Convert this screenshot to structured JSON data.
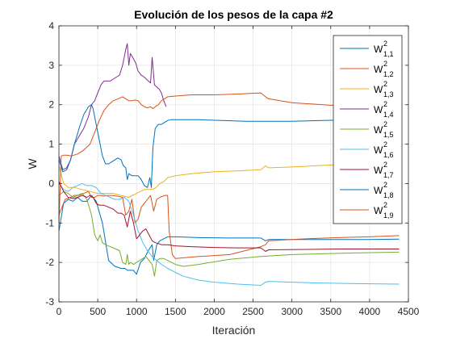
{
  "chart_data": {
    "type": "line",
    "title": "Evolución de los pesos de la capa #2",
    "xlabel": "Iteración",
    "ylabel": "W",
    "xlim": [
      0,
      4500
    ],
    "ylim": [
      -3,
      4
    ],
    "xticks": [
      0,
      500,
      1000,
      1500,
      2000,
      2500,
      3000,
      3500,
      4000,
      4500
    ],
    "yticks": [
      -3,
      -2,
      -1,
      0,
      1,
      2,
      3,
      4
    ],
    "grid": true,
    "legend_position": "top-right",
    "series": [
      {
        "name": "W",
        "sup": "2",
        "sub": "1,1",
        "color": "#0072BD",
        "x": [
          0,
          60,
          120,
          180,
          240,
          300,
          360,
          420,
          480,
          560,
          640,
          720,
          800,
          850,
          880,
          920,
          960,
          1000,
          1050,
          1100,
          1150,
          1200,
          1220,
          1260,
          1300,
          1350,
          1400,
          1450,
          1500,
          1800,
          2200,
          2600,
          2660,
          2700,
          2760,
          3200,
          3600,
          4000,
          4380
        ],
        "y": [
          -1.2,
          -0.5,
          -0.4,
          -0.45,
          -0.35,
          -0.45,
          -0.45,
          -0.3,
          -0.45,
          -1.0,
          -1.95,
          -2.1,
          -2.15,
          -2.15,
          -2.2,
          -2.2,
          -2.2,
          -2.3,
          -2.0,
          -1.9,
          -1.7,
          -1.55,
          -1.95,
          -1.55,
          -1.45,
          -1.4,
          -1.35,
          -1.35,
          -1.35,
          -1.37,
          -1.38,
          -1.38,
          -1.45,
          -1.42,
          -1.42,
          -1.42,
          -1.42,
          -1.42,
          -1.41
        ]
      },
      {
        "name": "W",
        "sup": "2",
        "sub": "1,2",
        "color": "#D95319",
        "x": [
          0,
          40,
          80,
          150,
          200,
          260,
          320,
          380,
          420,
          460,
          500,
          540,
          580,
          620,
          680,
          760,
          820,
          860,
          900,
          940,
          980,
          1020,
          1060,
          1100,
          1140,
          1180,
          1220,
          1260,
          1300,
          1360,
          1400,
          1420,
          1460,
          1500,
          1800,
          2200,
          2600,
          2660,
          2700,
          3200,
          3600,
          4000,
          4380
        ],
        "y": [
          -0.8,
          -0.6,
          -0.4,
          -0.35,
          -0.3,
          -0.3,
          -0.25,
          -0.2,
          -0.35,
          -0.35,
          -0.3,
          -0.3,
          -0.32,
          -0.3,
          -0.3,
          -0.32,
          -0.35,
          -0.8,
          -0.7,
          -0.4,
          -1.0,
          -0.9,
          -0.6,
          -0.5,
          -0.4,
          -0.3,
          -0.7,
          -0.4,
          -0.35,
          -0.3,
          -0.3,
          -1.2,
          -1.8,
          -1.9,
          -1.85,
          -1.8,
          -1.6,
          -1.55,
          -1.45,
          -1.4,
          -1.37,
          -1.35,
          -1.32
        ]
      },
      {
        "name": "W",
        "sup": "2",
        "sub": "1,3",
        "color": "#EDB120",
        "x": [
          0,
          60,
          120,
          200,
          300,
          400,
          500,
          600,
          700,
          800,
          900,
          1000,
          1100,
          1200,
          1250,
          1300,
          1350,
          1400,
          1500,
          1700,
          2000,
          2300,
          2600,
          2660,
          2700,
          3000,
          3300,
          3600,
          3900,
          4200,
          4380
        ],
        "y": [
          0.45,
          0.0,
          -0.1,
          -0.1,
          -0.15,
          -0.2,
          -0.25,
          -0.25,
          -0.25,
          -0.3,
          -0.35,
          -0.25,
          -0.15,
          -0.15,
          -0.1,
          0.0,
          0.05,
          0.15,
          0.2,
          0.25,
          0.3,
          0.32,
          0.35,
          0.45,
          0.4,
          0.42,
          0.45,
          0.48,
          0.5,
          0.52,
          0.55
        ]
      },
      {
        "name": "W",
        "sup": "2",
        "sub": "1,4",
        "color": "#7E2F8E",
        "x": [
          0,
          50,
          100,
          150,
          200,
          260,
          320,
          380,
          420,
          460,
          500,
          540,
          580,
          620,
          660,
          700,
          740,
          780,
          820,
          860,
          880,
          900,
          920,
          950,
          990,
          1020,
          1060,
          1100,
          1140,
          1180,
          1200,
          1230,
          1260,
          1290,
          1320,
          1350,
          1380
        ],
        "y": [
          0.7,
          0.35,
          0.4,
          0.6,
          1.0,
          1.2,
          1.4,
          1.7,
          2.0,
          2.1,
          2.3,
          2.5,
          2.6,
          2.6,
          2.6,
          2.65,
          2.7,
          2.75,
          3.0,
          3.4,
          3.55,
          3.0,
          3.3,
          3.2,
          3.05,
          2.85,
          2.75,
          2.7,
          2.62,
          2.55,
          3.2,
          2.5,
          2.45,
          2.4,
          2.3,
          2.1,
          1.95
        ]
      },
      {
        "name": "W",
        "sup": "2",
        "sub": "1,5",
        "color": "#77AC30",
        "x": [
          0,
          60,
          120,
          180,
          240,
          300,
          360,
          420,
          460,
          500,
          530,
          560,
          600,
          660,
          720,
          780,
          820,
          860,
          880,
          900,
          920,
          960,
          1000,
          1040,
          1080,
          1120,
          1160,
          1200,
          1230,
          1260,
          1300,
          1350,
          1400,
          1500,
          1600,
          1800,
          2200,
          2600,
          3000,
          3400,
          3800,
          4380
        ],
        "y": [
          -0.3,
          -0.2,
          -0.25,
          -0.35,
          -0.3,
          -0.25,
          -0.4,
          -0.8,
          -1.3,
          -1.45,
          -1.3,
          -1.5,
          -1.55,
          -1.6,
          -1.65,
          -1.7,
          -2.0,
          -2.05,
          -1.8,
          -2.05,
          -2.0,
          -2.05,
          -2.0,
          -1.95,
          -1.9,
          -1.85,
          -1.95,
          -2.05,
          -2.35,
          -1.95,
          -1.9,
          -1.9,
          -1.95,
          -2.05,
          -2.1,
          -2.05,
          -1.92,
          -1.85,
          -1.8,
          -1.78,
          -1.76,
          -1.74
        ]
      },
      {
        "name": "W",
        "sup": "2",
        "sub": "1,6",
        "color": "#4DBEEE",
        "x": [
          0,
          60,
          120,
          180,
          240,
          300,
          360,
          420,
          480,
          540,
          600,
          660,
          720,
          780,
          840,
          900,
          960,
          1020,
          1080,
          1140,
          1200,
          1260,
          1320,
          1400,
          1500,
          1600,
          1800,
          2000,
          2300,
          2600,
          2660,
          2700,
          3000,
          3300,
          3600,
          3900,
          4380
        ],
        "y": [
          0.0,
          -0.15,
          -0.2,
          -0.1,
          -0.05,
          0.0,
          -0.05,
          -0.05,
          -0.1,
          -0.25,
          -0.3,
          -0.35,
          -0.4,
          -0.4,
          -0.35,
          -0.45,
          -0.8,
          -1.2,
          -1.5,
          -1.7,
          -1.85,
          -1.95,
          -2.05,
          -2.15,
          -2.25,
          -2.35,
          -2.45,
          -2.5,
          -2.55,
          -2.58,
          -2.5,
          -2.48,
          -2.5,
          -2.52,
          -2.53,
          -2.54,
          -2.55
        ]
      },
      {
        "name": "W",
        "sup": "2",
        "sub": "1,7",
        "color": "#A2142F",
        "x": [
          0,
          60,
          120,
          180,
          240,
          300,
          360,
          400,
          440,
          480,
          520,
          580,
          640,
          700,
          760,
          800,
          840,
          880,
          920,
          960,
          1000,
          1040,
          1080,
          1120,
          1160,
          1200,
          1240,
          1280,
          1320,
          1360,
          1400,
          1500,
          1700,
          2000,
          2300,
          2600,
          2660,
          2700,
          3200,
          3600,
          4000,
          4380
        ],
        "y": [
          0.05,
          -0.2,
          -0.35,
          -0.38,
          -0.35,
          -0.3,
          -0.35,
          -0.3,
          -0.35,
          -0.5,
          -0.55,
          -0.55,
          -0.6,
          -0.65,
          -0.75,
          -0.75,
          -0.8,
          -1.1,
          -0.7,
          -1.0,
          -1.4,
          -1.3,
          -1.2,
          -1.15,
          -1.3,
          -1.45,
          -1.5,
          -1.52,
          -1.55,
          -1.55,
          -1.55,
          -1.58,
          -1.6,
          -1.62,
          -1.63,
          -1.63,
          -1.72,
          -1.68,
          -1.67,
          -1.66,
          -1.66,
          -1.66
        ]
      },
      {
        "name": "W",
        "sup": "2",
        "sub": "1,8",
        "color": "#0072BD",
        "x": [
          0,
          50,
          100,
          150,
          200,
          260,
          320,
          380,
          420,
          440,
          470,
          500,
          530,
          560,
          600,
          640,
          680,
          720,
          760,
          800,
          830,
          860,
          880,
          900,
          940,
          980,
          1020,
          1060,
          1100,
          1140,
          1170,
          1190,
          1210,
          1240,
          1280,
          1320,
          1360,
          1400,
          1440,
          1500,
          1800,
          2100,
          2400,
          2700,
          3000,
          3400,
          3800,
          4200,
          4380
        ],
        "y": [
          0.6,
          0.3,
          0.35,
          0.6,
          1.0,
          1.4,
          1.75,
          1.95,
          2.0,
          1.9,
          1.6,
          1.3,
          1.0,
          0.7,
          0.5,
          0.5,
          0.55,
          0.6,
          0.65,
          0.6,
          0.45,
          0.4,
          0.1,
          0.25,
          0.2,
          0.2,
          0.2,
          0.1,
          -0.05,
          -0.1,
          0.15,
          -0.1,
          0.9,
          1.4,
          1.5,
          1.5,
          1.55,
          1.6,
          1.62,
          1.62,
          1.62,
          1.6,
          1.58,
          1.58,
          1.58,
          1.6,
          1.62,
          1.63,
          1.65
        ]
      },
      {
        "name": "W",
        "sup": "2",
        "sub": "1,9",
        "color": "#D95319",
        "x": [
          0,
          30,
          60,
          100,
          160,
          240,
          320,
          400,
          460,
          520,
          580,
          640,
          700,
          760,
          820,
          860,
          900,
          940,
          980,
          1020,
          1060,
          1100,
          1140,
          1180,
          1210,
          1240,
          1280,
          1320,
          1360,
          1400,
          1500,
          1700,
          2000,
          2300,
          2600,
          2660,
          2700,
          3000,
          3400,
          3800,
          4100,
          4380
        ],
        "y": [
          -1.0,
          0.7,
          0.72,
          0.72,
          0.7,
          0.75,
          0.85,
          1.0,
          1.3,
          1.6,
          1.85,
          2.0,
          2.1,
          2.15,
          2.2,
          2.15,
          2.1,
          2.1,
          2.12,
          2.1,
          2.0,
          1.95,
          1.92,
          1.95,
          1.9,
          1.95,
          2.0,
          2.1,
          2.15,
          2.2,
          2.22,
          2.25,
          2.25,
          2.27,
          2.3,
          2.2,
          2.15,
          2.05,
          2.0,
          1.95,
          1.9,
          1.9
        ]
      }
    ]
  }
}
